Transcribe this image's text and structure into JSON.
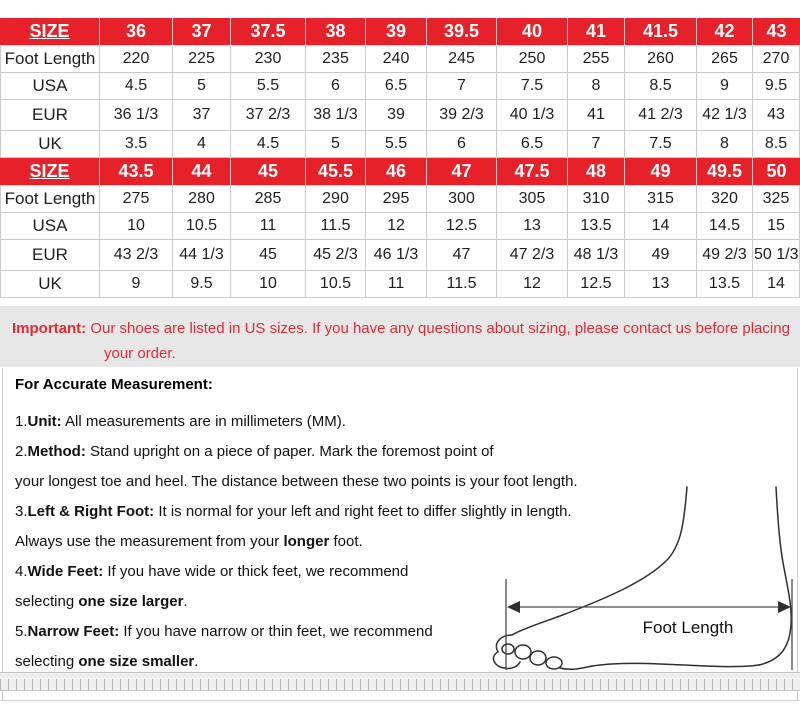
{
  "colors": {
    "header_red": "#e62129",
    "note_red": "#e02b33",
    "note_bg": "#e7e7e7",
    "table_border": "#c9c9c9"
  },
  "size_chart": {
    "size_label": "SIZE",
    "sections": [
      {
        "sizes": [
          "36",
          "37",
          "37.5",
          "38",
          "39",
          "39.5",
          "40",
          "41",
          "41.5",
          "42",
          "43"
        ],
        "rows": [
          {
            "label": "Foot Length",
            "values": [
              "220",
              "225",
              "230",
              "235",
              "240",
              "245",
              "250",
              "255",
              "260",
              "265",
              "270"
            ]
          },
          {
            "label": "USA",
            "values": [
              "4.5",
              "5",
              "5.5",
              "6",
              "6.5",
              "7",
              "7.5",
              "8",
              "8.5",
              "9",
              "9.5"
            ]
          },
          {
            "label": "EUR",
            "values": [
              "36 1/3",
              "37",
              "37 2/3",
              "38 1/3",
              "39",
              "39 2/3",
              "40 1/3",
              "41",
              "41 2/3",
              "42 1/3",
              "43"
            ]
          },
          {
            "label": "UK",
            "values": [
              "3.5",
              "4",
              "4.5",
              "5",
              "5.5",
              "6",
              "6.5",
              "7",
              "7.5",
              "8",
              "8.5"
            ]
          }
        ]
      },
      {
        "sizes": [
          "43.5",
          "44",
          "45",
          "45.5",
          "46",
          "47",
          "47.5",
          "48",
          "49",
          "49.5",
          "50"
        ],
        "rows": [
          {
            "label": "Foot Length",
            "values": [
              "275",
              "280",
              "285",
              "290",
              "295",
              "300",
              "305",
              "310",
              "315",
              "320",
              "325"
            ]
          },
          {
            "label": "USA",
            "values": [
              "10",
              "10.5",
              "11",
              "11.5",
              "12",
              "12.5",
              "13",
              "13.5",
              "14",
              "14.5",
              "15"
            ]
          },
          {
            "label": "EUR",
            "values": [
              "43 2/3",
              "44 1/3",
              "45",
              "45 2/3",
              "46 1/3",
              "47",
              "47 2/3",
              "48 1/3",
              "49",
              "49 2/3",
              "50 1/3"
            ]
          },
          {
            "label": "UK",
            "values": [
              "9",
              "9.5",
              "10",
              "10.5",
              "11",
              "11.5",
              "12",
              "12.5",
              "13",
              "13.5",
              "14"
            ]
          }
        ]
      }
    ]
  },
  "important": {
    "label": "Important:",
    "text": " Our shoes are listed in US sizes. If you have any questions about sizing, please contact us before placing your order."
  },
  "instructions": {
    "title": "For Accurate Measurement:",
    "lines": [
      [
        {
          "text": "1.",
          "bold": false
        },
        {
          "text": "Unit:",
          "bold": true
        },
        {
          "text": " All measurements are in millimeters (MM).",
          "bold": false
        }
      ],
      [
        {
          "text": "2.",
          "bold": false
        },
        {
          "text": "Method:",
          "bold": true
        },
        {
          "text": " Stand upright on a piece of paper. Mark the foremost point of",
          "bold": false
        }
      ],
      [
        {
          "text": "your longest toe and heel. The distance between these two points is your foot length.",
          "bold": false
        }
      ],
      [
        {
          "text": "3.",
          "bold": false
        },
        {
          "text": "Left & Right Foot:",
          "bold": true
        },
        {
          "text": " It is normal for your left and right feet to differ slightly in length.",
          "bold": false
        }
      ],
      [
        {
          "text": "Always use the measurement from your ",
          "bold": false
        },
        {
          "text": "longer",
          "bold": true
        },
        {
          "text": " foot.",
          "bold": false
        }
      ],
      [
        {
          "text": "4.",
          "bold": false
        },
        {
          "text": "Wide Feet:",
          "bold": true
        },
        {
          "text": " If you have wide or thick feet, we recommend",
          "bold": false
        }
      ],
      [
        {
          "text": "selecting ",
          "bold": false
        },
        {
          "text": "one size larger",
          "bold": true
        },
        {
          "text": ".",
          "bold": false
        }
      ],
      [
        {
          "text": "5.",
          "bold": false
        },
        {
          "text": "Narrow Feet:",
          "bold": true
        },
        {
          "text": " If you have narrow or thin feet, we recommend",
          "bold": false
        }
      ],
      [
        {
          "text": "selecting ",
          "bold": false
        },
        {
          "text": "one size smaller",
          "bold": true
        },
        {
          "text": ".",
          "bold": false
        }
      ]
    ]
  },
  "diagram": {
    "label": "Foot Length"
  }
}
